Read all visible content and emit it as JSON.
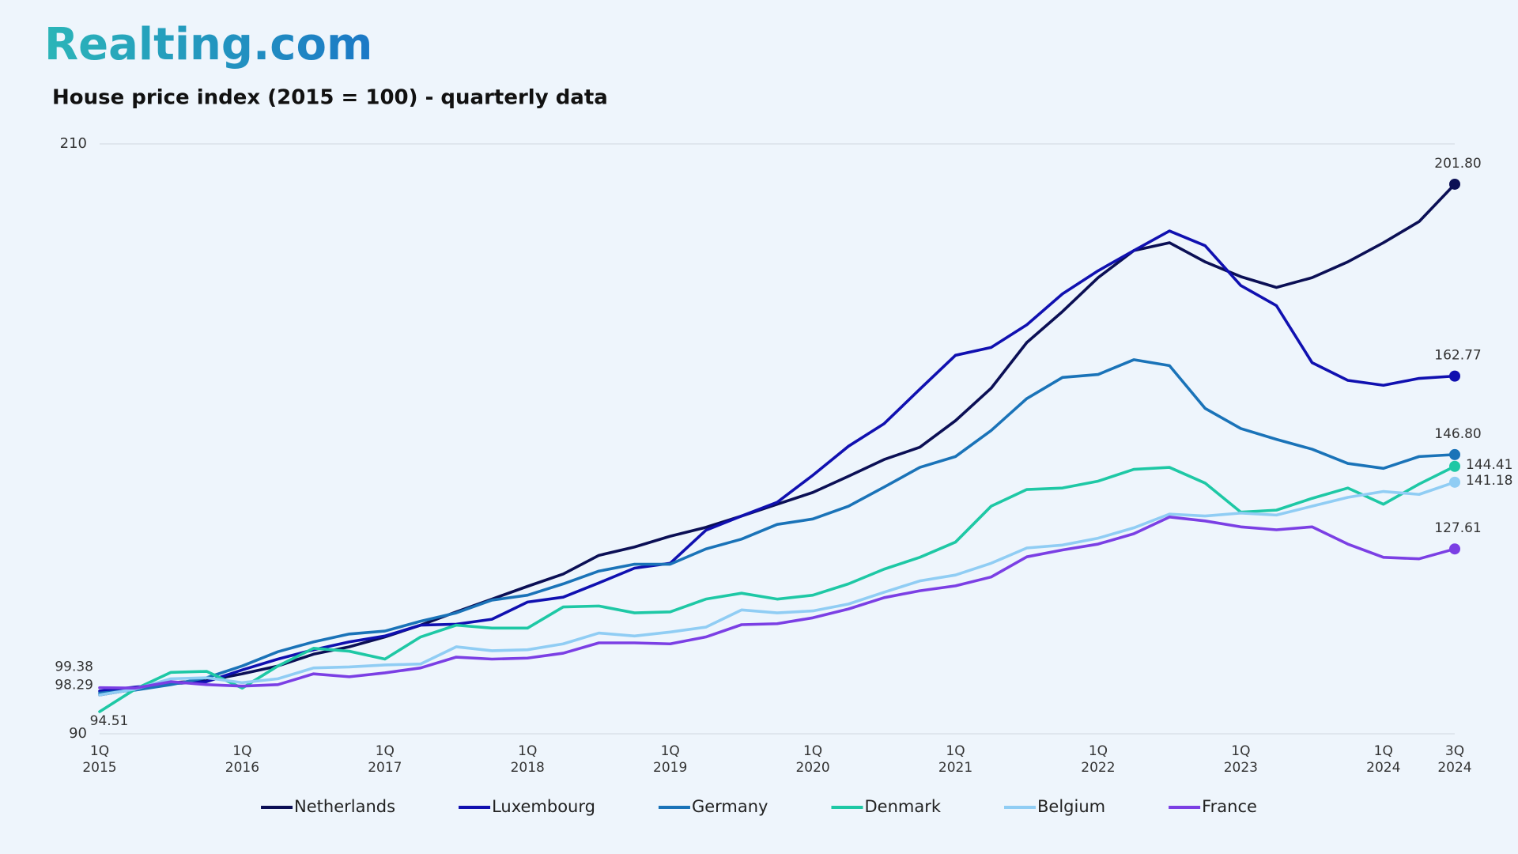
{
  "header": {
    "logo": "Realting.com"
  },
  "chart_data": {
    "type": "line",
    "title": "House price index (2015 = 100) - quarterly data",
    "categories": [
      "1Q\n2015",
      null,
      null,
      null,
      "1Q\n2016",
      null,
      null,
      null,
      "1Q\n2017",
      null,
      null,
      null,
      "1Q\n2018",
      null,
      null,
      null,
      "1Q\n2019",
      null,
      null,
      null,
      "1Q\n2020",
      null,
      null,
      null,
      "1Q\n2021",
      null,
      null,
      null,
      "1Q\n2022",
      null,
      null,
      null,
      "1Q\n2023",
      null,
      null,
      null,
      "1Q\n2024",
      null,
      "3Q\n2024"
    ],
    "ylim": [
      90,
      210
    ],
    "yticks": [
      90,
      210
    ],
    "grid": true,
    "legend": "bottom",
    "series": [
      {
        "name": "Netherlands",
        "color": "#0b0f55",
        "values": [
          97.9,
          99.1,
          100.4,
          100.8,
          102.2,
          103.8,
          106.2,
          107.7,
          109.7,
          112.1,
          114.8,
          117.4,
          120.0,
          122.5,
          126.3,
          128.0,
          130.2,
          132.0,
          134.3,
          136.7,
          139.1,
          142.4,
          145.8,
          148.3,
          153.7,
          160.3,
          169.6,
          175.9,
          182.8,
          188.3,
          189.9,
          186.0,
          183.0,
          180.8,
          182.8,
          186.0,
          189.9,
          194.2,
          201.8
        ],
        "value_labels": [
          null,
          null,
          null,
          null,
          null,
          null,
          null,
          null,
          null,
          null,
          null,
          null,
          null,
          null,
          null,
          null,
          null,
          null,
          null,
          null,
          null,
          null,
          null,
          null,
          null,
          null,
          null,
          null,
          null,
          null,
          null,
          null,
          null,
          null,
          null,
          null,
          null,
          null,
          "201.80"
        ]
      },
      {
        "name": "Luxembourg",
        "color": "#1010b0",
        "values": [
          98.7,
          99.5,
          100.2,
          100.6,
          103.0,
          105.2,
          107.1,
          108.7,
          109.9,
          112.1,
          112.3,
          113.3,
          116.8,
          117.8,
          120.7,
          123.7,
          124.7,
          131.4,
          134.3,
          137.1,
          142.6,
          148.5,
          153.1,
          160.1,
          167.0,
          168.6,
          173.2,
          179.5,
          184.2,
          188.3,
          192.3,
          189.3,
          181.2,
          177.1,
          165.5,
          161.9,
          160.9,
          162.3,
          162.77
        ],
        "value_labels": [
          null,
          null,
          null,
          null,
          null,
          null,
          null,
          null,
          null,
          null,
          null,
          null,
          null,
          null,
          null,
          null,
          null,
          null,
          null,
          null,
          null,
          null,
          null,
          null,
          null,
          null,
          null,
          null,
          null,
          null,
          null,
          null,
          null,
          null,
          null,
          null,
          null,
          null,
          "162.77"
        ]
      },
      {
        "name": "Germany",
        "color": "#1a73b8",
        "values": [
          98.29,
          98.9,
          100.0,
          101.4,
          103.8,
          106.7,
          108.7,
          110.3,
          110.9,
          112.9,
          114.6,
          117.2,
          118.2,
          120.5,
          123.1,
          124.5,
          124.5,
          127.6,
          129.6,
          132.6,
          133.7,
          136.3,
          140.2,
          144.2,
          146.4,
          151.7,
          158.2,
          162.5,
          163.1,
          166.1,
          164.9,
          156.2,
          152.1,
          149.9,
          147.9,
          145.0,
          144.0,
          146.4,
          146.8
        ],
        "value_labels": [
          "98.29",
          null,
          null,
          null,
          null,
          null,
          null,
          null,
          null,
          null,
          null,
          null,
          null,
          null,
          null,
          null,
          null,
          null,
          null,
          null,
          null,
          null,
          null,
          null,
          null,
          null,
          null,
          null,
          null,
          null,
          null,
          null,
          null,
          null,
          null,
          null,
          null,
          null,
          "146.80"
        ]
      },
      {
        "name": "Denmark",
        "color": "#1ec8a5",
        "values": [
          94.51,
          99.1,
          102.5,
          102.7,
          99.3,
          103.8,
          107.4,
          106.8,
          105.2,
          109.7,
          112.1,
          111.5,
          111.5,
          115.8,
          116.0,
          114.6,
          114.8,
          117.4,
          118.6,
          117.4,
          118.2,
          120.5,
          123.5,
          125.9,
          129.0,
          136.3,
          139.7,
          140.0,
          141.4,
          143.8,
          144.2,
          141.0,
          135.1,
          135.5,
          137.9,
          140.0,
          136.7,
          140.8,
          144.41
        ],
        "value_labels": [
          "94.51",
          null,
          null,
          null,
          null,
          null,
          null,
          null,
          null,
          null,
          null,
          null,
          null,
          null,
          null,
          null,
          null,
          null,
          null,
          null,
          null,
          null,
          null,
          null,
          null,
          null,
          null,
          null,
          null,
          null,
          null,
          null,
          null,
          null,
          null,
          null,
          null,
          null,
          "144.41"
        ]
      },
      {
        "name": "Belgium",
        "color": "#90cdf4",
        "values": [
          97.9,
          99.1,
          101.2,
          101.4,
          100.4,
          101.2,
          103.4,
          103.6,
          104.0,
          104.2,
          107.7,
          106.9,
          107.1,
          108.3,
          110.5,
          109.9,
          110.7,
          111.7,
          115.2,
          114.6,
          115.0,
          116.4,
          118.8,
          121.1,
          122.3,
          124.7,
          127.8,
          128.4,
          129.8,
          131.9,
          134.7,
          134.3,
          134.9,
          134.5,
          136.3,
          138.1,
          139.3,
          138.7,
          141.18
        ],
        "value_labels": [
          null,
          null,
          null,
          null,
          null,
          null,
          null,
          null,
          null,
          null,
          null,
          null,
          null,
          null,
          null,
          null,
          null,
          null,
          null,
          null,
          null,
          null,
          null,
          null,
          null,
          null,
          null,
          null,
          null,
          null,
          null,
          null,
          null,
          null,
          null,
          null,
          null,
          null,
          "141.18"
        ]
      },
      {
        "name": "France",
        "color": "#7b3fe4",
        "values": [
          99.38,
          99.3,
          100.6,
          100.0,
          99.7,
          100.0,
          102.2,
          101.6,
          102.4,
          103.4,
          105.6,
          105.2,
          105.4,
          106.4,
          108.5,
          108.5,
          108.3,
          109.7,
          112.2,
          112.4,
          113.6,
          115.4,
          117.7,
          119.1,
          120.1,
          121.9,
          126.0,
          127.4,
          128.6,
          130.7,
          134.1,
          133.3,
          132.1,
          131.5,
          132.1,
          128.6,
          125.9,
          125.6,
          127.61
        ],
        "value_labels": [
          "99.38",
          null,
          null,
          null,
          null,
          null,
          null,
          null,
          null,
          null,
          null,
          null,
          null,
          null,
          null,
          null,
          null,
          null,
          null,
          null,
          null,
          null,
          null,
          null,
          null,
          null,
          null,
          null,
          null,
          null,
          null,
          null,
          null,
          null,
          null,
          null,
          null,
          null,
          "127.61"
        ]
      }
    ]
  }
}
